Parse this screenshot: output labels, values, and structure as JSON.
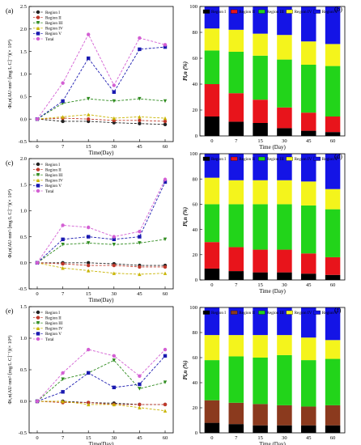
{
  "chart_data": [
    {
      "id": "a",
      "panel_label": "(a)",
      "type": "line",
      "x": [
        0,
        7,
        15,
        30,
        45,
        60
      ],
      "xlabel": "Time(Day)",
      "ylabel": "Φi,n(AU·nm²·[mg/L C]⁻¹)(× 10⁴)",
      "ylim": [
        -0.5,
        2.5
      ],
      "yticks": [
        "-0.5",
        "0.0",
        "0.5",
        "1.0",
        "1.5",
        "2.0",
        "2.5"
      ],
      "xticks": [
        "0",
        "7",
        "15",
        "30",
        "45",
        "60"
      ],
      "legend_position": "top-left",
      "series": [
        {
          "name": "Region I",
          "color": "#222222",
          "marker": "circle",
          "values": [
            0.0,
            -0.05,
            -0.05,
            -0.08,
            -0.1,
            -0.12
          ]
        },
        {
          "name": "Region II",
          "color": "#c0392b",
          "marker": "circle",
          "values": [
            0.0,
            0.02,
            0.0,
            -0.03,
            -0.03,
            -0.05
          ]
        },
        {
          "name": "Region III",
          "color": "#2e8b1e",
          "marker": "triangle-down",
          "values": [
            0.0,
            0.35,
            0.45,
            0.4,
            0.45,
            0.4
          ]
        },
        {
          "name": "Region IV",
          "color": "#c8b400",
          "marker": "triangle-up",
          "values": [
            0.0,
            0.05,
            0.1,
            0.02,
            0.05,
            0.02
          ]
        },
        {
          "name": "Region V",
          "color": "#1a1ab0",
          "marker": "square",
          "values": [
            0.0,
            0.4,
            1.35,
            0.6,
            1.55,
            1.6
          ]
        },
        {
          "name": "Total",
          "color": "#d35fd3",
          "marker": "circle",
          "values": [
            0.0,
            0.8,
            1.88,
            0.75,
            1.8,
            1.65
          ]
        }
      ]
    },
    {
      "id": "c",
      "panel_label": "(c)",
      "type": "line",
      "x": [
        0,
        7,
        15,
        30,
        45,
        60
      ],
      "xlabel": "Time(Day)",
      "ylabel": "Φi,n(AU·nm²·[mg/L C]⁻¹)(× 10⁴)",
      "ylim": [
        -0.5,
        2.0
      ],
      "yticks": [
        "-0.5",
        "0.0",
        "0.5",
        "1.0",
        "1.5",
        "2.0"
      ],
      "xticks": [
        "0",
        "7",
        "15",
        "30",
        "45",
        "60"
      ],
      "legend_position": "top-left",
      "series": [
        {
          "name": "Region I",
          "color": "#222222",
          "marker": "circle",
          "values": [
            0.0,
            0.0,
            0.0,
            -0.02,
            -0.05,
            -0.05
          ]
        },
        {
          "name": "Region II",
          "color": "#c0392b",
          "marker": "circle",
          "values": [
            0.0,
            -0.02,
            -0.05,
            -0.05,
            -0.08,
            -0.08
          ]
        },
        {
          "name": "Region III",
          "color": "#2e8b1e",
          "marker": "triangle-down",
          "values": [
            0.0,
            0.35,
            0.38,
            0.35,
            0.38,
            0.45
          ]
        },
        {
          "name": "Region IV",
          "color": "#c8b400",
          "marker": "triangle-up",
          "values": [
            0.0,
            -0.1,
            -0.15,
            -0.2,
            -0.22,
            -0.2
          ]
        },
        {
          "name": "Region V",
          "color": "#1a1ab0",
          "marker": "square",
          "values": [
            0.0,
            0.45,
            0.5,
            0.45,
            0.5,
            1.55
          ]
        },
        {
          "name": "Total",
          "color": "#d35fd3",
          "marker": "circle",
          "values": [
            0.0,
            0.72,
            0.68,
            0.5,
            0.6,
            1.6
          ]
        }
      ]
    },
    {
      "id": "e",
      "panel_label": "(e)",
      "type": "line",
      "x": [
        0,
        7,
        15,
        30,
        45,
        60
      ],
      "xlabel": "Time(Day)",
      "ylabel": "Φi,n(AU·nm²·[mg/L C]⁻¹)(× 10⁴)",
      "ylim": [
        -0.5,
        1.5
      ],
      "yticks": [
        "-0.5",
        "0.0",
        "0.5",
        "1.0",
        "1.5"
      ],
      "xticks": [
        "0",
        "7",
        "15",
        "30",
        "45",
        "60"
      ],
      "legend_position": "top-left",
      "series": [
        {
          "name": "Region I",
          "color": "#222222",
          "marker": "circle",
          "values": [
            0.0,
            0.0,
            -0.02,
            -0.03,
            -0.05,
            -0.05
          ]
        },
        {
          "name": "Region II",
          "color": "#c0392b",
          "marker": "circle",
          "values": [
            0.0,
            -0.02,
            -0.02,
            -0.05,
            -0.05,
            -0.05
          ]
        },
        {
          "name": "Region III",
          "color": "#2e8b1e",
          "marker": "triangle-down",
          "values": [
            0.0,
            0.35,
            0.45,
            0.65,
            0.2,
            0.3
          ]
        },
        {
          "name": "Region IV",
          "color": "#c8b400",
          "marker": "triangle-up",
          "values": [
            0.0,
            0.0,
            -0.05,
            -0.05,
            -0.1,
            -0.15
          ]
        },
        {
          "name": "Region V",
          "color": "#1a1ab0",
          "marker": "square",
          "values": [
            0.0,
            0.15,
            0.45,
            0.22,
            0.27,
            0.72
          ]
        },
        {
          "name": "Total",
          "color": "#d35fd3",
          "marker": "circle",
          "values": [
            0.0,
            0.45,
            0.82,
            0.72,
            0.4,
            0.82
          ]
        }
      ]
    },
    {
      "id": "b",
      "panel_label": "(b)",
      "type": "bar",
      "stacked": true,
      "categories": [
        "0",
        "7",
        "15",
        "30",
        "45",
        "60"
      ],
      "xlabel": "Time (Day)",
      "ylabel": "Pi,n (%)",
      "ylim": [
        0,
        100
      ],
      "yticks": [
        "0",
        "20",
        "40",
        "60",
        "80",
        "100"
      ],
      "legend_position": "top",
      "series": [
        {
          "name": "Region I",
          "color": "#000000",
          "values": [
            15,
            11,
            10,
            6,
            4,
            3
          ]
        },
        {
          "name": "Region II",
          "color": "#e8141b",
          "values": [
            25,
            22,
            18,
            16,
            14,
            12
          ]
        },
        {
          "name": "Region III",
          "color": "#22d41a",
          "values": [
            26,
            32,
            34,
            37,
            37,
            39
          ]
        },
        {
          "name": "Region IV",
          "color": "#f4f41c",
          "values": [
            17,
            17,
            17,
            19,
            18,
            17
          ]
        },
        {
          "name": "Region V",
          "color": "#1414e6",
          "values": [
            17,
            18,
            21,
            22,
            27,
            29
          ]
        }
      ]
    },
    {
      "id": "d",
      "panel_label": "(d)",
      "type": "bar",
      "stacked": true,
      "categories": [
        "0",
        "7",
        "15",
        "30",
        "45",
        "60"
      ],
      "xlabel": "Time (Day)",
      "ylabel": "Pi,n (%)",
      "ylim": [
        0,
        100
      ],
      "yticks": [
        "0",
        "20",
        "40",
        "60",
        "80",
        "100"
      ],
      "legend_position": "top",
      "series": [
        {
          "name": "Region I",
          "color": "#000000",
          "values": [
            9,
            7,
            6,
            6,
            5,
            4
          ]
        },
        {
          "name": "Region II",
          "color": "#e8141b",
          "values": [
            21,
            19,
            18,
            18,
            16,
            14
          ]
        },
        {
          "name": "Region III",
          "color": "#22d41a",
          "values": [
            30,
            34,
            36,
            36,
            38,
            38
          ]
        },
        {
          "name": "Region IV",
          "color": "#f4f41c",
          "values": [
            21,
            19,
            19,
            19,
            19,
            16
          ]
        },
        {
          "name": "Region V",
          "color": "#1414e6",
          "values": [
            19,
            21,
            21,
            21,
            22,
            28
          ]
        }
      ]
    },
    {
      "id": "f",
      "panel_label": "(f)",
      "type": "bar",
      "stacked": true,
      "categories": [
        "0",
        "7",
        "15",
        "30",
        "45",
        "60"
      ],
      "xlabel": "Time (Day)",
      "ylabel": "Pi,n (%)",
      "ylim": [
        0,
        100
      ],
      "yticks": [
        "0",
        "20",
        "40",
        "60",
        "80",
        "100"
      ],
      "legend_position": "top",
      "series": [
        {
          "name": "Region I",
          "color": "#000000",
          "values": [
            8,
            7,
            6,
            6,
            6,
            6
          ]
        },
        {
          "name": "Region II",
          "color": "#8b3a1e",
          "values": [
            18,
            17,
            17,
            16,
            15,
            16
          ]
        },
        {
          "name": "Region III",
          "color": "#22d41a",
          "values": [
            32,
            37,
            37,
            40,
            37,
            37
          ]
        },
        {
          "name": "Region IV",
          "color": "#f4f41c",
          "values": [
            20,
            17,
            18,
            16,
            18,
            15
          ]
        },
        {
          "name": "Region V",
          "color": "#1414e6",
          "values": [
            22,
            22,
            22,
            22,
            24,
            26
          ]
        }
      ]
    }
  ]
}
